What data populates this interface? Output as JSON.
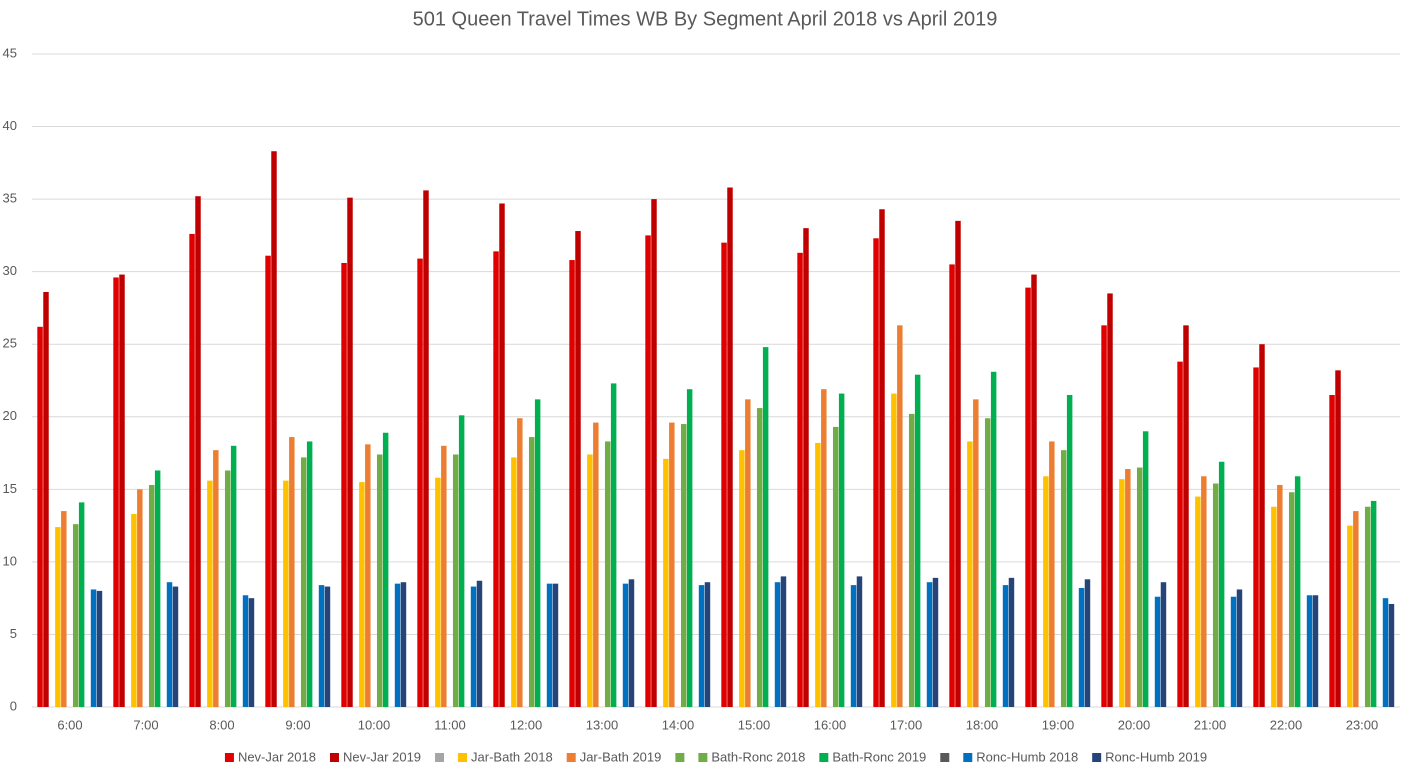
{
  "chart_data": {
    "type": "bar",
    "title": "501 Queen Travel Times WB By Segment April 2018 vs April 2019",
    "categories": [
      "6:00",
      "7:00",
      "8:00",
      "9:00",
      "10:00",
      "11:00",
      "12:00",
      "13:00",
      "14:00",
      "15:00",
      "16:00",
      "17:00",
      "18:00",
      "19:00",
      "20:00",
      "21:00",
      "22:00",
      "23:00"
    ],
    "ylim": [
      0,
      45
    ],
    "yticks": [
      0,
      5,
      10,
      15,
      20,
      25,
      30,
      35,
      40,
      45
    ],
    "grid": true,
    "legend": "bottom",
    "series": [
      {
        "name": "Nev-Jar 2018",
        "color": "#e00000",
        "values": [
          26.2,
          29.6,
          32.6,
          31.1,
          30.6,
          30.9,
          31.4,
          30.8,
          32.5,
          32.0,
          31.3,
          32.3,
          30.5,
          28.9,
          26.3,
          23.8,
          23.4,
          21.5
        ]
      },
      {
        "name": "Nev-Jar 2019",
        "color": "#c00000",
        "values": [
          28.6,
          29.8,
          35.2,
          38.3,
          35.1,
          35.6,
          34.7,
          32.8,
          35.0,
          35.8,
          33.0,
          34.3,
          33.5,
          29.8,
          28.5,
          26.3,
          25.0,
          23.2
        ]
      },
      {
        "name": null,
        "color": "#a5a5a5",
        "values": [
          null,
          null,
          null,
          null,
          null,
          null,
          null,
          null,
          null,
          null,
          null,
          null,
          null,
          null,
          null,
          null,
          null,
          null
        ]
      },
      {
        "name": "Jar-Bath 2018",
        "color": "#ffc000",
        "values": [
          12.4,
          13.3,
          15.6,
          15.6,
          15.5,
          15.8,
          17.2,
          17.4,
          17.1,
          17.7,
          18.2,
          21.6,
          18.3,
          15.9,
          15.7,
          14.5,
          13.8,
          12.5
        ]
      },
      {
        "name": "Jar-Bath 2019",
        "color": "#ed7d31",
        "values": [
          13.5,
          15.0,
          17.7,
          18.6,
          18.1,
          18.0,
          19.9,
          19.6,
          19.6,
          21.2,
          21.9,
          26.3,
          21.2,
          18.3,
          16.4,
          15.9,
          15.3,
          13.5
        ]
      },
      {
        "name": null,
        "color": "#70ad47",
        "values": [
          null,
          null,
          null,
          null,
          null,
          null,
          null,
          null,
          null,
          null,
          null,
          null,
          null,
          null,
          null,
          null,
          null,
          null
        ]
      },
      {
        "name": "Bath-Ronc 2018",
        "color": "#70ad47",
        "values": [
          12.6,
          15.3,
          16.3,
          17.2,
          17.4,
          17.4,
          18.6,
          18.3,
          19.5,
          20.6,
          19.3,
          20.2,
          19.9,
          17.7,
          16.5,
          15.4,
          14.8,
          13.8
        ]
      },
      {
        "name": "Bath-Ronc 2019",
        "color": "#00b050",
        "values": [
          14.1,
          16.3,
          18.0,
          18.3,
          18.9,
          20.1,
          21.2,
          22.3,
          21.9,
          24.8,
          21.6,
          22.9,
          23.1,
          21.5,
          19.0,
          16.9,
          15.9,
          14.2
        ]
      },
      {
        "name": null,
        "color": "#595959",
        "values": [
          null,
          null,
          null,
          null,
          null,
          null,
          null,
          null,
          null,
          null,
          null,
          null,
          null,
          null,
          null,
          null,
          null,
          null
        ]
      },
      {
        "name": "Ronc-Humb 2018",
        "color": "#0070c0",
        "values": [
          8.1,
          8.6,
          7.7,
          8.4,
          8.5,
          8.3,
          8.5,
          8.5,
          8.4,
          8.6,
          8.4,
          8.6,
          8.4,
          8.2,
          7.6,
          7.6,
          7.7,
          7.5
        ]
      },
      {
        "name": "Ronc-Humb 2019",
        "color": "#264478",
        "values": [
          8.0,
          8.3,
          7.5,
          8.3,
          8.6,
          8.7,
          8.5,
          8.8,
          8.6,
          9.0,
          9.0,
          8.9,
          8.9,
          8.8,
          8.6,
          8.1,
          7.7,
          7.1
        ]
      }
    ]
  }
}
